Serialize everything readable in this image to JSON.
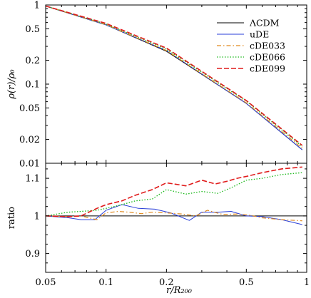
{
  "chart_data": [
    {
      "type": "line",
      "panel": "top",
      "scale": {
        "x": "log",
        "y": "log"
      },
      "xlim": [
        0.05,
        1
      ],
      "ylim": [
        0.01,
        1
      ],
      "ylabel": "ρ(r)/ρ₀",
      "y_ticks": [
        {
          "value": 1,
          "label": "1"
        },
        {
          "value": 0.5,
          "label": "0.5"
        },
        {
          "value": 0.2,
          "label": "0.2"
        },
        {
          "value": 0.1,
          "label": "0.1"
        },
        {
          "value": 0.05,
          "label": "0.05"
        },
        {
          "value": 0.02,
          "label": "0.02"
        },
        {
          "value": 0.01,
          "label": "0.01"
        }
      ],
      "legend_position": "top-right",
      "series": [
        {
          "name": "ΛCDM",
          "color": "#000000",
          "dash": "solid",
          "x": [
            0.05,
            0.1,
            0.2,
            0.5,
            0.95
          ],
          "y": [
            0.97,
            0.56,
            0.26,
            0.057,
            0.0148
          ]
        },
        {
          "name": "uDE",
          "color": "#2a3fd8",
          "dash": "solid",
          "x": [
            0.05,
            0.1,
            0.2,
            0.5,
            0.95
          ],
          "y": [
            0.97,
            0.56,
            0.265,
            0.057,
            0.0148
          ]
        },
        {
          "name": "cDE033",
          "color": "#e08a1f",
          "dash": "dashdot",
          "x": [
            0.05,
            0.1,
            0.2,
            0.5,
            0.95
          ],
          "y": [
            0.97,
            0.565,
            0.265,
            0.058,
            0.0155
          ]
        },
        {
          "name": "cDE066",
          "color": "#18b818",
          "dash": "dotted",
          "x": [
            0.05,
            0.1,
            0.2,
            0.5,
            0.95
          ],
          "y": [
            0.97,
            0.575,
            0.275,
            0.061,
            0.0163
          ]
        },
        {
          "name": "cDE099",
          "color": "#e01b1b",
          "dash": "dashed",
          "x": [
            0.05,
            0.1,
            0.2,
            0.5,
            0.95
          ],
          "y": [
            0.97,
            0.585,
            0.285,
            0.062,
            0.0168
          ]
        }
      ]
    },
    {
      "type": "line",
      "panel": "bottom",
      "scale": {
        "x": "log",
        "y": "linear"
      },
      "xlim": [
        0.05,
        1
      ],
      "ylim": [
        0.85,
        1.14
      ],
      "xlabel": "r/R₂₀₀",
      "ylabel": "ratio",
      "x_ticks": [
        {
          "value": 0.05,
          "label": "0.05"
        },
        {
          "value": 0.1,
          "label": "0.1"
        },
        {
          "value": 0.2,
          "label": "0.2"
        },
        {
          "value": 0.5,
          "label": "0.5"
        },
        {
          "value": 1,
          "label": "1"
        }
      ],
      "y_ticks": [
        {
          "value": 0.9,
          "label": "0.9"
        },
        {
          "value": 1.0,
          "label": "1"
        },
        {
          "value": 1.1,
          "label": "1.1"
        }
      ],
      "series": [
        {
          "name": "ΛCDM",
          "color": "#000000",
          "dash": "solid",
          "x": [
            0.05,
            1
          ],
          "y": [
            1.0,
            1.0
          ]
        },
        {
          "name": "uDE",
          "color": "#2a3fd8",
          "dash": "solid",
          "x": [
            0.05,
            0.065,
            0.075,
            0.088,
            0.1,
            0.12,
            0.145,
            0.175,
            0.21,
            0.26,
            0.3,
            0.36,
            0.42,
            0.5,
            0.6,
            0.75,
            0.95
          ],
          "y": [
            1.0,
            0.995,
            0.99,
            0.99,
            1.015,
            1.03,
            1.02,
            1.018,
            1.008,
            0.988,
            1.01,
            1.01,
            1.012,
            1.0,
            0.998,
            0.99,
            0.977
          ]
        },
        {
          "name": "cDE033",
          "color": "#e08a1f",
          "dash": "dashdot",
          "x": [
            0.05,
            0.065,
            0.075,
            0.09,
            0.1,
            0.115,
            0.13,
            0.15,
            0.17,
            0.2,
            0.24,
            0.28,
            0.32,
            0.38,
            0.45,
            0.52,
            0.6,
            0.75,
            0.95
          ],
          "y": [
            1.0,
            0.998,
            1.0,
            0.99,
            1.008,
            1.012,
            1.01,
            1.006,
            1.01,
            1.008,
            1.005,
            1.0,
            1.015,
            1.004,
            1.005,
            1.002,
            0.995,
            0.99,
            0.987
          ]
        },
        {
          "name": "cDE066",
          "color": "#18b818",
          "dash": "dotted",
          "x": [
            0.05,
            0.065,
            0.075,
            0.09,
            0.1,
            0.12,
            0.14,
            0.17,
            0.2,
            0.25,
            0.3,
            0.36,
            0.42,
            0.5,
            0.6,
            0.75,
            0.95
          ],
          "y": [
            1.0,
            1.01,
            1.012,
            1.015,
            1.02,
            1.03,
            1.04,
            1.045,
            1.07,
            1.058,
            1.065,
            1.06,
            1.075,
            1.095,
            1.1,
            1.11,
            1.115
          ]
        },
        {
          "name": "cDE099",
          "color": "#e01b1b",
          "dash": "dashed",
          "x": [
            0.05,
            0.065,
            0.075,
            0.09,
            0.1,
            0.12,
            0.14,
            0.17,
            0.2,
            0.25,
            0.3,
            0.35,
            0.4,
            0.45,
            0.5,
            0.6,
            0.75,
            0.95
          ],
          "y": [
            1.0,
            0.998,
            1.0,
            1.02,
            1.03,
            1.04,
            1.055,
            1.07,
            1.088,
            1.08,
            1.095,
            1.085,
            1.092,
            1.1,
            1.105,
            1.115,
            1.125,
            1.13
          ]
        }
      ]
    }
  ]
}
